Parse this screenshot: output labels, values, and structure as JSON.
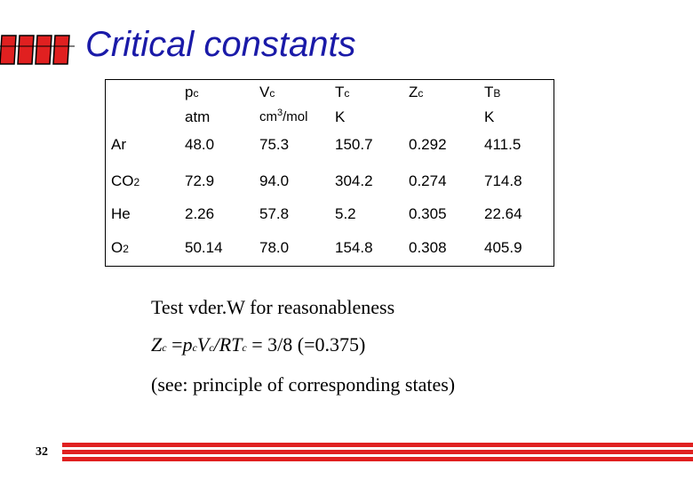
{
  "title": "Critical constants",
  "accent_color": "#1a1aa8",
  "bar_color": "#e02020",
  "table": {
    "headers": [
      {
        "main": "p",
        "sub": "c",
        "unit": "atm"
      },
      {
        "main": "V",
        "sub": "c",
        "unit_base": "cm",
        "unit_sup": "3",
        "unit_rest": "/mol"
      },
      {
        "main": "T",
        "sub": "c",
        "unit": "K"
      },
      {
        "main": "Z",
        "sub": "c",
        "unit": ""
      },
      {
        "main": "T",
        "sub": "B",
        "unit": "K"
      }
    ],
    "rows": [
      {
        "name": "Ar",
        "name_sub": "",
        "values": [
          "48.0",
          "75.3",
          "150.7",
          "0.292",
          "411.5"
        ]
      },
      {
        "name": "CO",
        "name_sub": "2",
        "values": [
          "72.9",
          "94.0",
          "304.2",
          "0.274",
          "714.8"
        ]
      },
      {
        "name": "He",
        "name_sub": "",
        "values": [
          "2.26",
          "57.8",
          "5.2",
          "0.305",
          "22.64"
        ]
      },
      {
        "name": "O",
        "name_sub": "2",
        "values": [
          "50.14",
          "78.0",
          "154.8",
          "0.308",
          "405.9"
        ]
      }
    ]
  },
  "text": {
    "line1": "Test vder.W for reasonableness",
    "line2_zc": "Z",
    "line2_zc_sub": "c",
    "line2_eq": " =",
    "line2_p": "p",
    "line2_p_sub": "c",
    "line2_v": "V",
    "line2_v_sub": "c",
    "line2_rt": "/RT",
    "line2_rt_sub": "c",
    "line2_rest": " = 3/8 (=0.375)",
    "line3": "(see: principle of corresponding states)"
  },
  "page_number": "32"
}
